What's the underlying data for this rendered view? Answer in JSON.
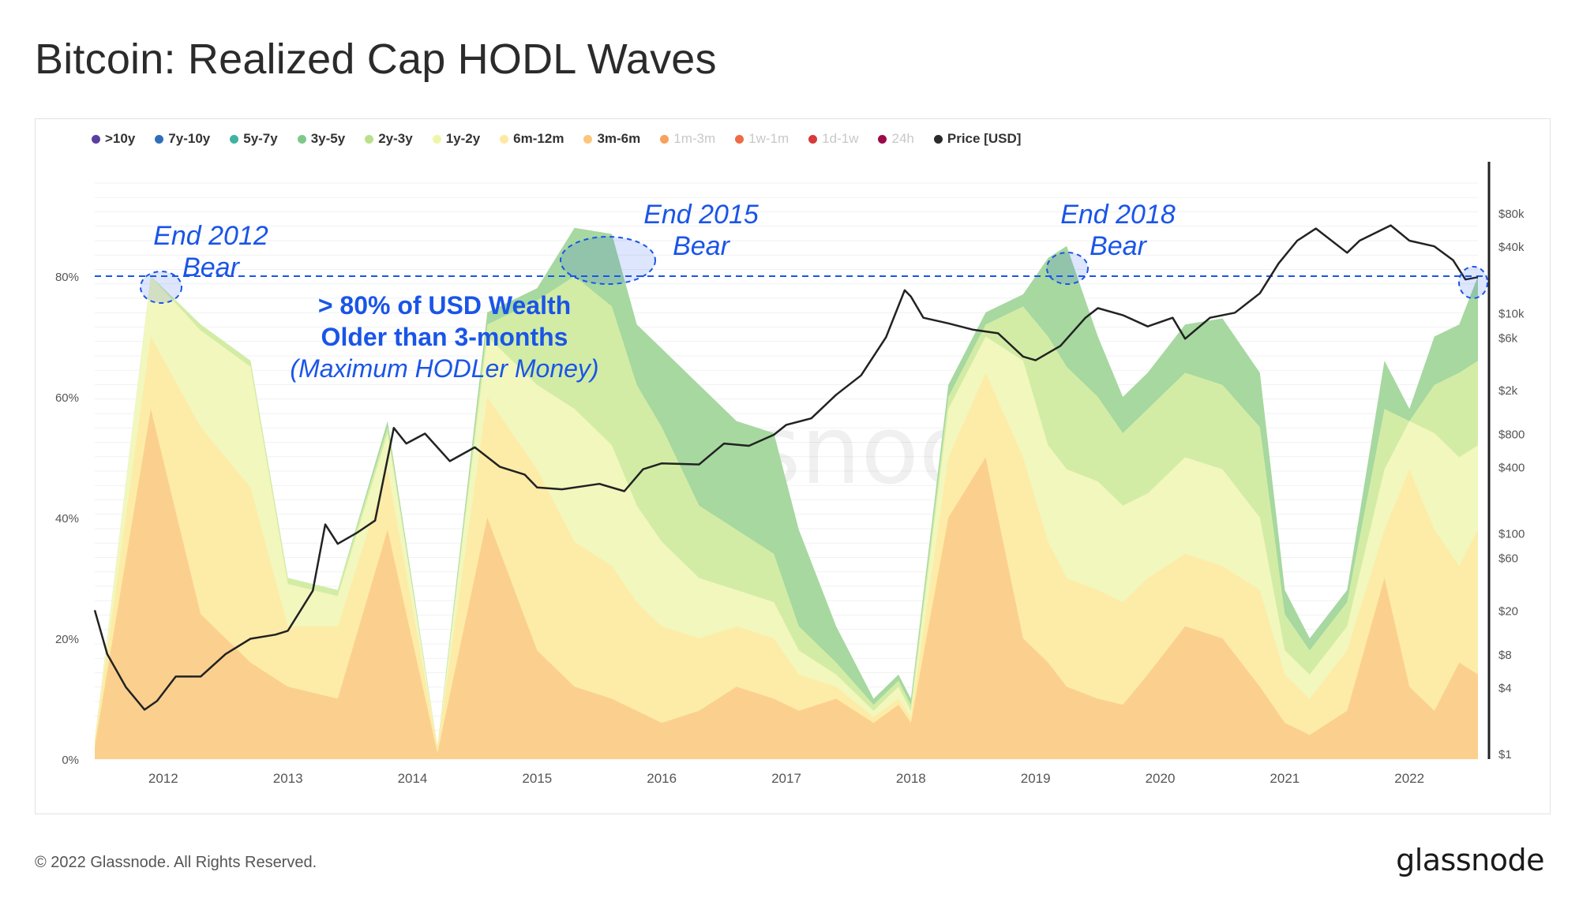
{
  "page": {
    "title": "Bitcoin: Realized Cap HODL Waves",
    "copyright": "© 2022 Glassnode. All Rights Reserved.",
    "logo": "glassnode",
    "watermark": "glassnode"
  },
  "legend": [
    {
      "label": ">10y",
      "color": "#5b3fa0",
      "enabled": true
    },
    {
      "label": "7y-10y",
      "color": "#2f6fba",
      "enabled": true
    },
    {
      "label": "5y-7y",
      "color": "#3fb3a3",
      "enabled": true
    },
    {
      "label": "3y-5y",
      "color": "#7ec88a",
      "enabled": true
    },
    {
      "label": "2y-3y",
      "color": "#b9e08c",
      "enabled": true
    },
    {
      "label": "1y-2y",
      "color": "#eef7a6",
      "enabled": true
    },
    {
      "label": "6m-12m",
      "color": "#fde9a2",
      "enabled": true
    },
    {
      "label": "3m-6m",
      "color": "#fcc57a",
      "enabled": true
    },
    {
      "label": "1m-3m",
      "color": "#f9a05a",
      "enabled": false
    },
    {
      "label": "1w-1m",
      "color": "#ee6b45",
      "enabled": false
    },
    {
      "label": "1d-1w",
      "color": "#d83a3a",
      "enabled": false
    },
    {
      "label": "24h",
      "color": "#9c0a4a",
      "enabled": false
    },
    {
      "label": "Price [USD]",
      "color": "#2b2b2b",
      "enabled": true
    }
  ],
  "annotations": {
    "bear_2012_line1": "End 2012",
    "bear_2012_line2": "Bear",
    "bear_2015_line1": "End 2015",
    "bear_2015_line2": "Bear",
    "bear_2018_line1": "End 2018",
    "bear_2018_line2": "Bear",
    "note_line1": "> 80% of USD Wealth",
    "note_line2": "Older than 3-months",
    "note_line3": "(Maximum HODLer Money)",
    "color": "#1a55e8"
  },
  "chart_data": {
    "type": "area",
    "title": "Bitcoin: Realized Cap HODL Waves",
    "x_tick_labels": [
      "2012",
      "2013",
      "2014",
      "2015",
      "2016",
      "2017",
      "2018",
      "2019",
      "2020",
      "2021",
      "2022"
    ],
    "x_range": [
      2011.45,
      2022.55
    ],
    "y_left_ticks": [
      "0%",
      "20%",
      "40%",
      "60%",
      "80%"
    ],
    "y_left_range": [
      0,
      100
    ],
    "y_right_ticks": [
      "$1",
      "$4",
      "$8",
      "$20",
      "$60",
      "$100",
      "$400",
      "$800",
      "$2k",
      "$6k",
      "$10k",
      "$40k",
      "$80k"
    ],
    "y_right_scale": "log",
    "y_right_range": [
      1,
      150000
    ],
    "reference_line": {
      "value": 80,
      "style": "dashed"
    },
    "grid": true,
    "legend_position": "top-left",
    "series_stacked_cumulative": [
      {
        "name": "3y-5y",
        "x": [
          2011.45,
          2011.9,
          2012.3,
          2012.7,
          2013.0,
          2013.4,
          2013.8,
          2014.2,
          2014.6,
          2015.0,
          2015.3,
          2015.6,
          2015.8,
          2016.0,
          2016.3,
          2016.6,
          2016.9,
          2017.1,
          2017.4,
          2017.7,
          2017.9,
          2018.0,
          2018.3,
          2018.6,
          2018.9,
          2019.1,
          2019.25,
          2019.5,
          2019.7,
          2019.9,
          2020.2,
          2020.5,
          2020.8,
          2021.0,
          2021.2,
          2021.5,
          2021.8,
          2022.0,
          2022.2,
          2022.4,
          2022.55
        ],
        "values": [
          3,
          80,
          72,
          66,
          30,
          28,
          56,
          2,
          74,
          78,
          88,
          87,
          72,
          68,
          62,
          56,
          54,
          38,
          22,
          10,
          14,
          10,
          62,
          74,
          77,
          83,
          85,
          70,
          60,
          64,
          72,
          73,
          64,
          28,
          20,
          28,
          66,
          58,
          70,
          72,
          80
        ]
      },
      {
        "name": "2y-3y",
        "x": [
          2011.45,
          2011.9,
          2012.3,
          2012.7,
          2013.0,
          2013.4,
          2013.8,
          2014.2,
          2014.6,
          2015.0,
          2015.3,
          2015.6,
          2015.8,
          2016.0,
          2016.3,
          2016.6,
          2016.9,
          2017.1,
          2017.4,
          2017.7,
          2017.9,
          2018.0,
          2018.3,
          2018.6,
          2018.9,
          2019.1,
          2019.25,
          2019.5,
          2019.7,
          2019.9,
          2020.2,
          2020.5,
          2020.8,
          2021.0,
          2021.2,
          2021.5,
          2021.8,
          2022.0,
          2022.2,
          2022.4,
          2022.55
        ],
        "values": [
          3,
          80,
          72,
          66,
          30,
          28,
          55,
          2,
          72,
          76,
          80,
          75,
          62,
          55,
          42,
          38,
          34,
          22,
          16,
          9,
          13,
          9,
          60,
          72,
          75,
          70,
          65,
          60,
          54,
          58,
          64,
          62,
          55,
          24,
          18,
          26,
          58,
          56,
          62,
          64,
          66
        ]
      },
      {
        "name": "1y-2y",
        "x": [
          2011.45,
          2011.9,
          2012.3,
          2012.7,
          2013.0,
          2013.4,
          2013.8,
          2014.2,
          2014.6,
          2015.0,
          2015.3,
          2015.6,
          2015.8,
          2016.0,
          2016.3,
          2016.6,
          2016.9,
          2017.1,
          2017.4,
          2017.7,
          2017.9,
          2018.0,
          2018.3,
          2018.6,
          2018.9,
          2019.1,
          2019.25,
          2019.5,
          2019.7,
          2019.9,
          2020.2,
          2020.5,
          2020.8,
          2021.0,
          2021.2,
          2021.5,
          2021.8,
          2022.0,
          2022.2,
          2022.4,
          2022.55
        ],
        "values": [
          3,
          80,
          71,
          65,
          29,
          27,
          54,
          2,
          70,
          62,
          58,
          52,
          42,
          36,
          30,
          28,
          26,
          18,
          14,
          8,
          12,
          8,
          58,
          70,
          66,
          52,
          48,
          46,
          42,
          44,
          50,
          48,
          40,
          18,
          14,
          22,
          48,
          56,
          54,
          50,
          52
        ]
      },
      {
        "name": "6m-12m",
        "x": [
          2011.45,
          2011.9,
          2012.3,
          2012.7,
          2013.0,
          2013.4,
          2013.8,
          2014.2,
          2014.6,
          2015.0,
          2015.3,
          2015.6,
          2015.8,
          2016.0,
          2016.3,
          2016.6,
          2016.9,
          2017.1,
          2017.4,
          2017.7,
          2017.9,
          2018.0,
          2018.3,
          2018.6,
          2018.9,
          2019.1,
          2019.25,
          2019.5,
          2019.7,
          2019.9,
          2020.2,
          2020.5,
          2020.8,
          2021.0,
          2021.2,
          2021.5,
          2021.8,
          2022.0,
          2022.2,
          2022.4,
          2022.55
        ],
        "values": [
          3,
          70,
          55,
          45,
          22,
          22,
          48,
          2,
          60,
          48,
          36,
          32,
          26,
          22,
          20,
          22,
          20,
          14,
          12,
          7,
          10,
          7,
          50,
          64,
          50,
          36,
          30,
          28,
          26,
          30,
          34,
          32,
          28,
          14,
          10,
          18,
          38,
          48,
          38,
          32,
          38
        ]
      },
      {
        "name": "3m-6m",
        "x": [
          2011.45,
          2011.9,
          2012.3,
          2012.7,
          2013.0,
          2013.4,
          2013.8,
          2014.2,
          2014.6,
          2015.0,
          2015.3,
          2015.6,
          2015.8,
          2016.0,
          2016.3,
          2016.6,
          2016.9,
          2017.1,
          2017.4,
          2017.7,
          2017.9,
          2018.0,
          2018.3,
          2018.6,
          2018.9,
          2019.1,
          2019.25,
          2019.5,
          2019.7,
          2019.9,
          2020.2,
          2020.5,
          2020.8,
          2021.0,
          2021.2,
          2021.5,
          2021.8,
          2022.0,
          2022.2,
          2022.4,
          2022.55
        ],
        "values": [
          2,
          58,
          24,
          16,
          12,
          10,
          38,
          1,
          40,
          18,
          12,
          10,
          8,
          6,
          8,
          12,
          10,
          8,
          10,
          6,
          9,
          6,
          40,
          50,
          20,
          16,
          12,
          10,
          9,
          14,
          22,
          20,
          12,
          6,
          4,
          8,
          30,
          12,
          8,
          16,
          14
        ]
      }
    ],
    "price_series": {
      "name": "Price [USD]",
      "x": [
        2011.45,
        2011.55,
        2011.7,
        2011.85,
        2011.95,
        2012.1,
        2012.3,
        2012.5,
        2012.7,
        2012.9,
        2013.0,
        2013.2,
        2013.3,
        2013.4,
        2013.55,
        2013.7,
        2013.85,
        2013.95,
        2014.1,
        2014.3,
        2014.5,
        2014.7,
        2014.9,
        2015.0,
        2015.2,
        2015.5,
        2015.7,
        2015.85,
        2016.0,
        2016.3,
        2016.5,
        2016.7,
        2016.9,
        2017.0,
        2017.2,
        2017.4,
        2017.6,
        2017.8,
        2017.95,
        2018.0,
        2018.1,
        2018.3,
        2018.5,
        2018.7,
        2018.9,
        2019.0,
        2019.2,
        2019.4,
        2019.5,
        2019.7,
        2019.9,
        2020.1,
        2020.2,
        2020.4,
        2020.6,
        2020.8,
        2020.95,
        2021.1,
        2021.25,
        2021.5,
        2021.6,
        2021.85,
        2022.0,
        2022.2,
        2022.35,
        2022.45,
        2022.55
      ],
      "values": [
        20,
        8,
        4,
        2.5,
        3,
        5,
        5,
        8,
        11,
        12,
        13,
        30,
        120,
        80,
        100,
        130,
        900,
        650,
        800,
        450,
        600,
        400,
        340,
        260,
        250,
        280,
        240,
        380,
        430,
        420,
        650,
        620,
        780,
        960,
        1100,
        1800,
        2700,
        6000,
        16000,
        14000,
        9000,
        8000,
        7000,
        6500,
        4000,
        3700,
        5000,
        9000,
        11000,
        9500,
        7500,
        9000,
        5800,
        9000,
        10000,
        15000,
        28000,
        45000,
        58000,
        35000,
        45000,
        62000,
        45000,
        40000,
        30000,
        20000,
        21000
      ]
    }
  }
}
